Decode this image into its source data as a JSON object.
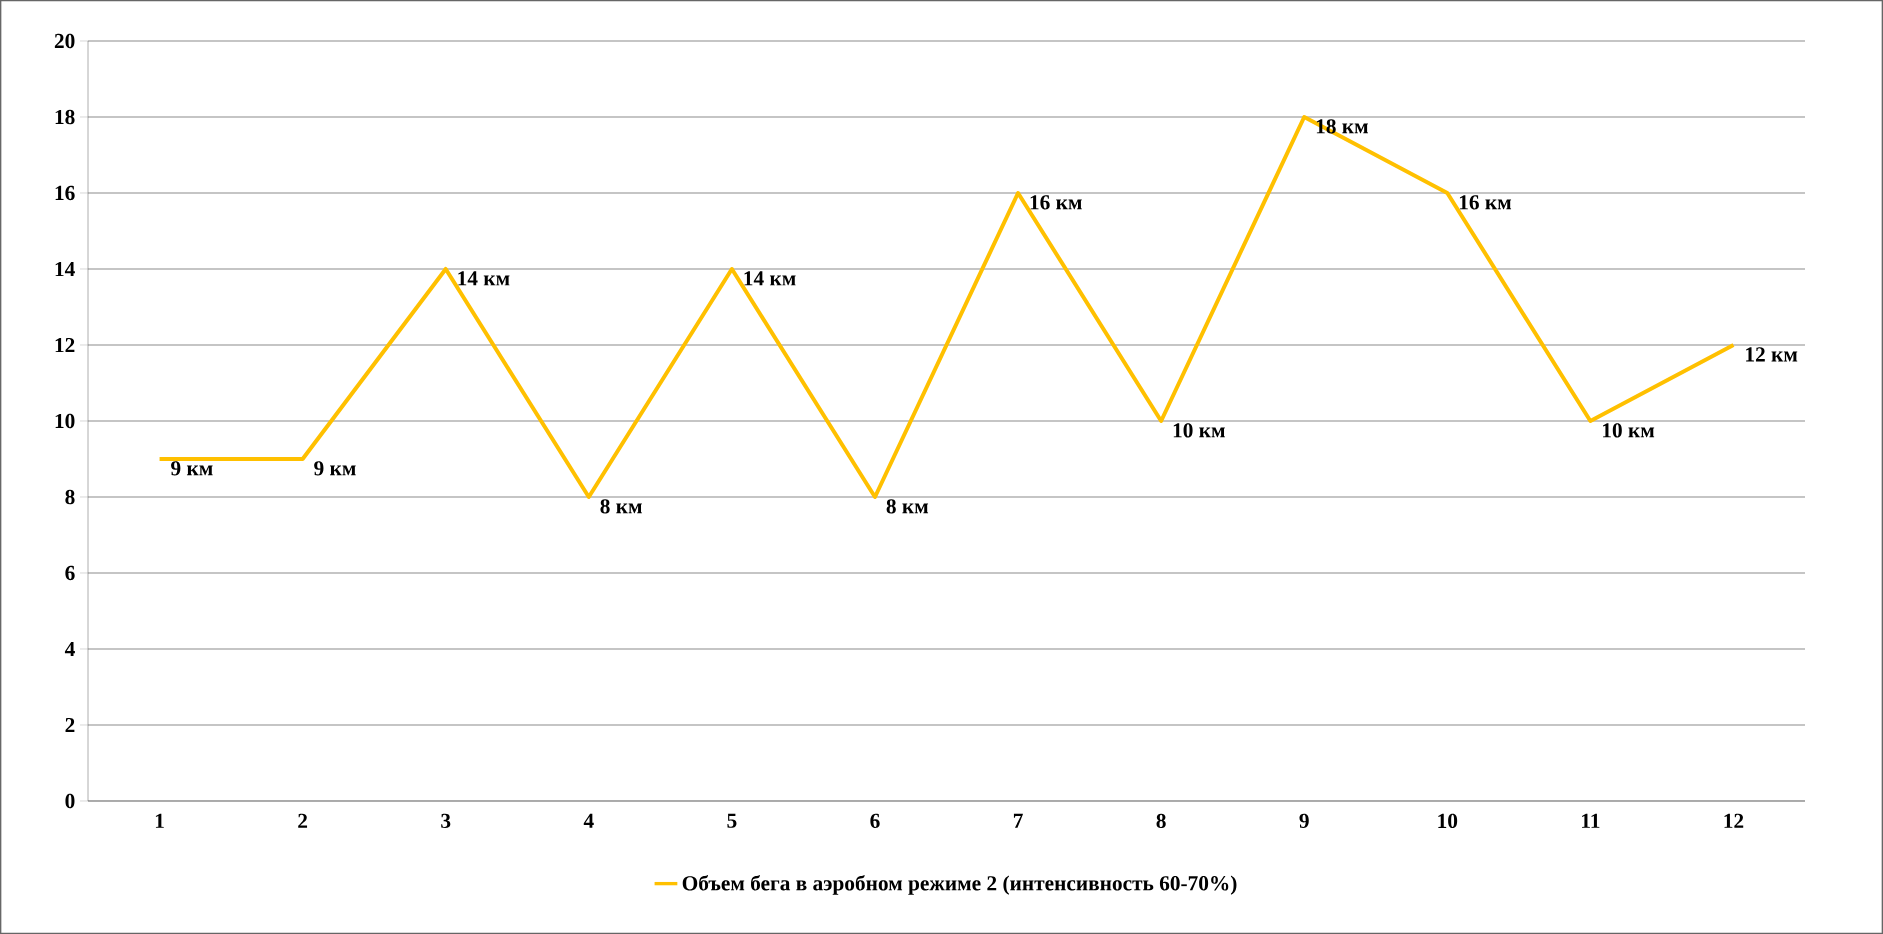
{
  "chart_data": {
    "type": "line",
    "categories": [
      "1",
      "2",
      "3",
      "4",
      "5",
      "6",
      "7",
      "8",
      "9",
      "10",
      "11",
      "12"
    ],
    "series": [
      {
        "name": "Объем бега в аэробном режиме 2 (интенсивность 60-70%)",
        "color": "#ffc000",
        "values": [
          9,
          9,
          14,
          8,
          14,
          8,
          16,
          10,
          18,
          16,
          10,
          12
        ],
        "value_labels": [
          "9 км",
          "9 км",
          "14 км",
          "8 км",
          "14 км",
          "8 км",
          "16 км",
          "10 км",
          "18 км",
          "16 км",
          "10 км",
          "12 км"
        ]
      }
    ],
    "ylim": [
      0,
      20
    ],
    "yticks": [
      0,
      2,
      4,
      6,
      8,
      10,
      12,
      14,
      16,
      18,
      20
    ],
    "grid": "y",
    "legend": "bottom",
    "marker": "none",
    "line_style": "solid"
  }
}
